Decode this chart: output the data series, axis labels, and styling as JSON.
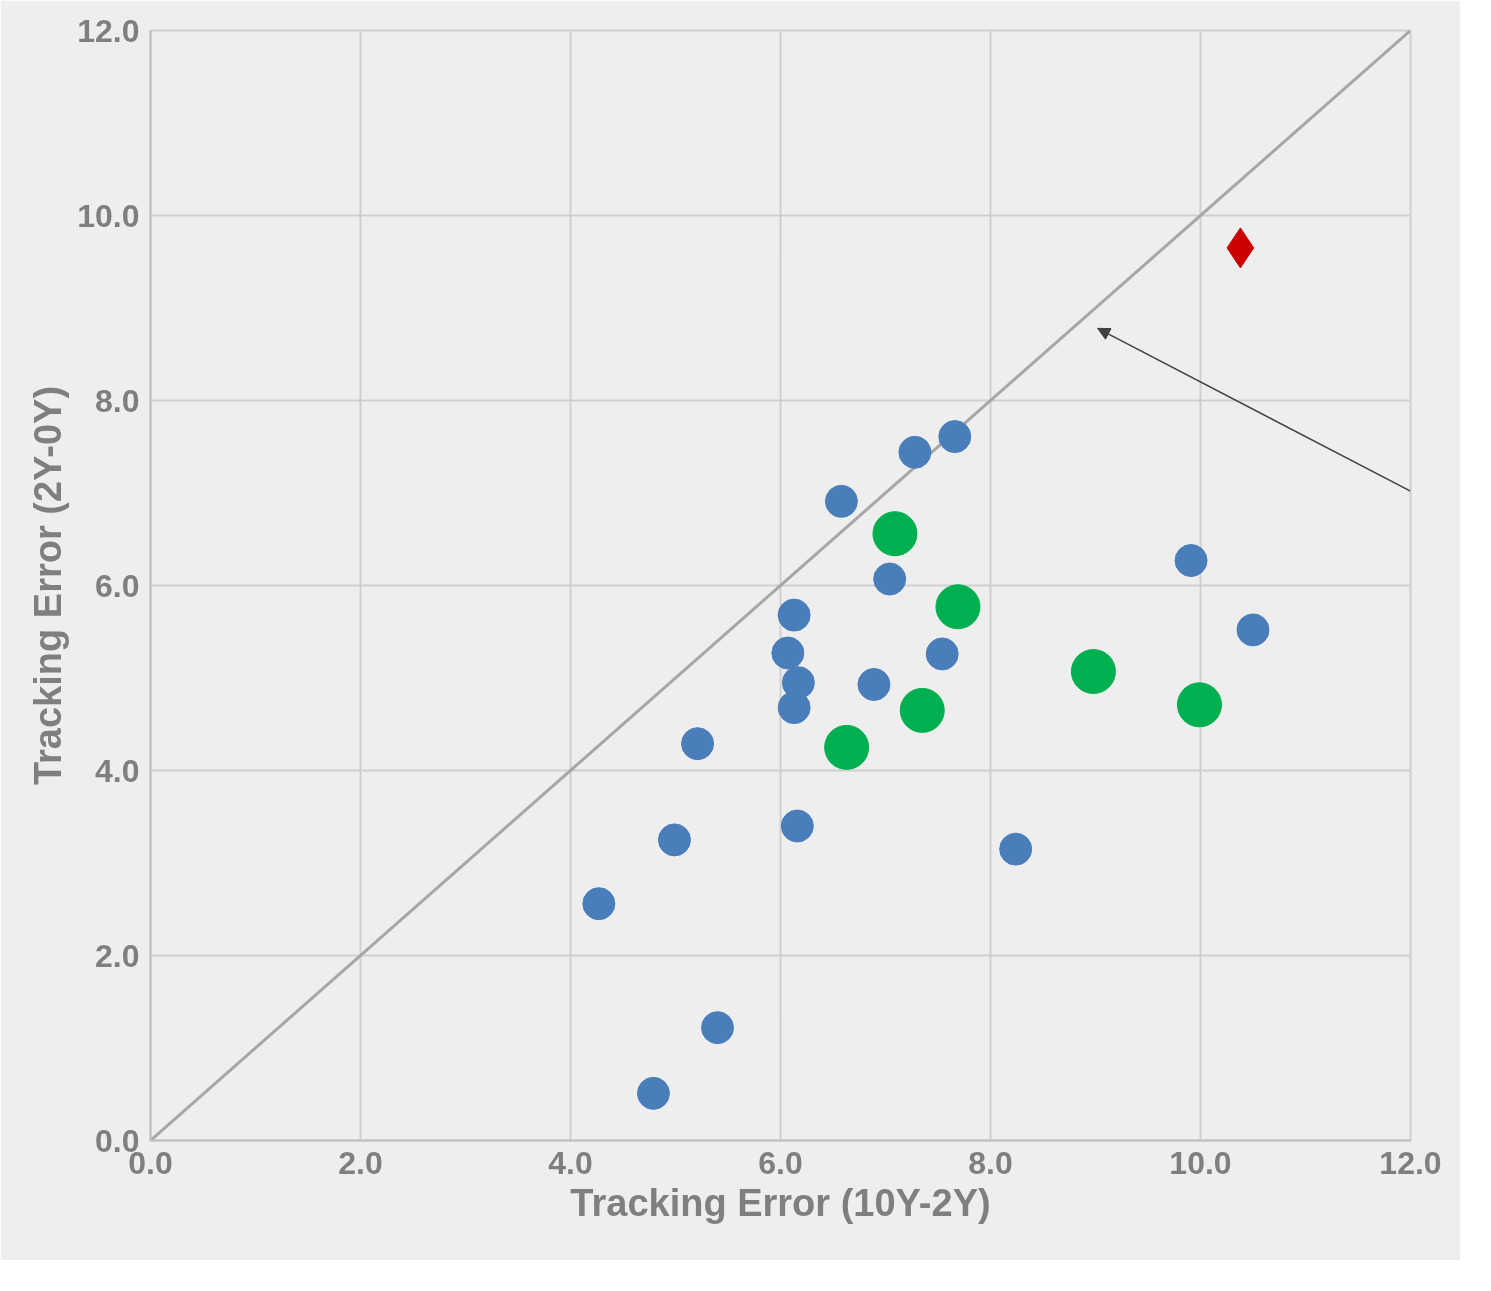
{
  "chart_data": {
    "type": "scatter",
    "xlabel": "Tracking Error (10Y-2Y)",
    "ylabel": "Tracking Error (2Y-0Y)",
    "xlim": [
      0,
      12
    ],
    "ylim": [
      0,
      12
    ],
    "xticks": [
      {
        "value": 0,
        "label": "0.0"
      },
      {
        "value": 2,
        "label": "2.0"
      },
      {
        "value": 4,
        "label": "4.0"
      },
      {
        "value": 6,
        "label": "6.0"
      },
      {
        "value": 8,
        "label": "8.0"
      },
      {
        "value": 10,
        "label": "10.0"
      },
      {
        "value": 12,
        "label": "12.0"
      }
    ],
    "yticks": [
      {
        "value": 0,
        "label": "0.0"
      },
      {
        "value": 2,
        "label": "2.0"
      },
      {
        "value": 4,
        "label": "4.0"
      },
      {
        "value": 6,
        "label": "6.0"
      },
      {
        "value": 8,
        "label": "8.0"
      },
      {
        "value": 10,
        "label": "10.0"
      },
      {
        "value": 12,
        "label": "12.0"
      }
    ],
    "grid": true,
    "series": [
      {
        "type": "line",
        "color": "#a6a6a6",
        "x": [
          0,
          12
        ],
        "values": [
          0,
          12
        ]
      },
      {
        "color": "#4a7ebb",
        "marker": "circle",
        "x": [
          4.27,
          4.79,
          4.99,
          5.21,
          5.4,
          6.07,
          6.13,
          6.13,
          6.17,
          6.16,
          6.58,
          6.89,
          7.04,
          7.28,
          7.54,
          7.66,
          8.24,
          9.91,
          10.5
        ],
        "values": [
          2.56,
          0.51,
          3.25,
          4.29,
          1.22,
          5.27,
          5.68,
          4.68,
          4.95,
          3.4,
          6.91,
          4.93,
          6.07,
          7.44,
          5.26,
          7.61,
          3.15,
          6.27,
          5.52
        ]
      },
      {
        "color": "#00b050",
        "marker": "circle",
        "x": [
          6.63,
          7.09,
          7.35,
          7.69,
          8.98,
          9.99
        ],
        "values": [
          4.25,
          6.56,
          4.65,
          5.77,
          5.07,
          4.71
        ]
      },
      {
        "color": "#cc0000",
        "marker": "diamond",
        "x": [
          10.38
        ],
        "values": [
          9.65
        ]
      }
    ]
  }
}
